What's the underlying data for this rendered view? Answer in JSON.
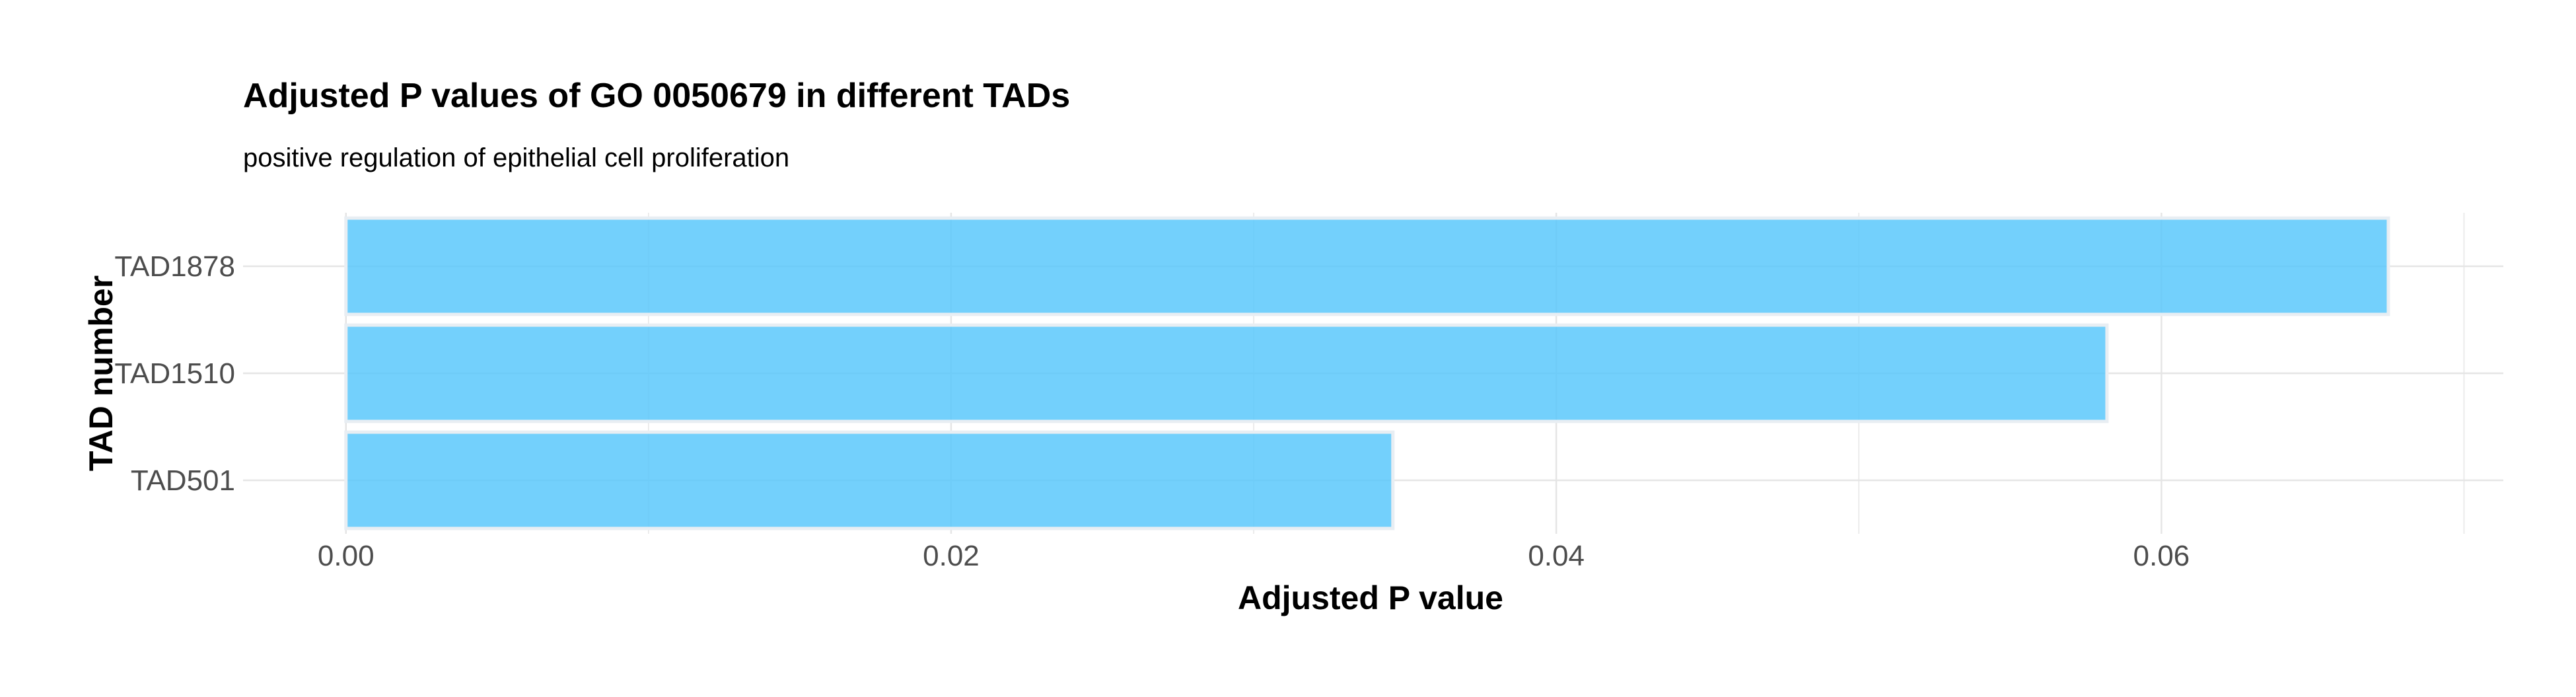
{
  "chart_data": {
    "type": "bar",
    "orientation": "horizontal",
    "title": "Adjusted P values of GO 0050679 in different TADs",
    "subtitle": "positive regulation of epithelial cell proliferation",
    "xlabel": "Adjusted P value",
    "ylabel": "TAD number",
    "categories": [
      "TAD1878",
      "TAD1510",
      "TAD501"
    ],
    "values": [
      0.0675,
      0.0582,
      0.0346
    ],
    "xlim": [
      -0.0034,
      0.0713
    ],
    "x_ticks": [
      0.0,
      0.02,
      0.04,
      0.06
    ],
    "x_tick_labels": [
      "0.00",
      "0.02",
      "0.04",
      "0.06"
    ],
    "grid": true,
    "legend": "none",
    "bar_color": "#5bc8fb",
    "bar_outline_color": "#e8eef3",
    "grid_color": "#e5e5e5"
  }
}
